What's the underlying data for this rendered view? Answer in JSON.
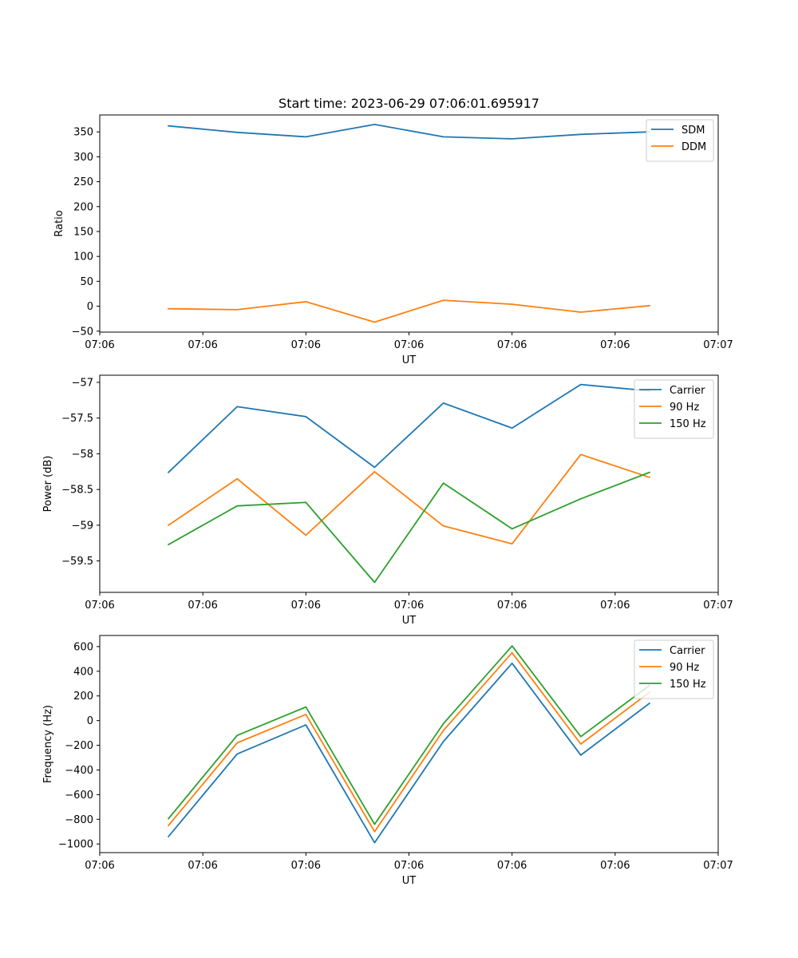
{
  "chart_data": [
    {
      "type": "line",
      "title": "Start time: 2023-06-29 07:06:01.695917",
      "xlabel": "UT",
      "ylabel": "Ratio",
      "x": [
        1,
        2,
        3,
        4,
        5,
        6,
        7,
        8
      ],
      "xlim": [
        0,
        9
      ],
      "x_tick_values": [
        0,
        1.5,
        3,
        4.5,
        6,
        7.5,
        9
      ],
      "x_tick_labels": [
        "07:06",
        "07:06",
        "07:06",
        "07:06",
        "07:06",
        "07:06",
        "07:07"
      ],
      "ylim": [
        -52,
        384
      ],
      "y_ticks": [
        -50,
        0,
        50,
        100,
        150,
        200,
        250,
        300,
        350
      ],
      "legend_position": "upper right",
      "series": [
        {
          "name": "SDM",
          "color": "#1f77b4",
          "values": [
            362,
            349,
            340,
            365,
            340,
            336,
            345,
            350
          ]
        },
        {
          "name": "DDM",
          "color": "#ff7f0e",
          "values": [
            -5,
            -7,
            9,
            -32,
            12,
            4,
            -12,
            1
          ]
        }
      ]
    },
    {
      "type": "line",
      "title": "",
      "xlabel": "UT",
      "ylabel": "Power (dB)",
      "x": [
        1,
        2,
        3,
        4,
        5,
        6,
        7,
        8
      ],
      "xlim": [
        0,
        9
      ],
      "x_tick_values": [
        0,
        1.5,
        3,
        4.5,
        6,
        7.5,
        9
      ],
      "x_tick_labels": [
        "07:06",
        "07:06",
        "07:06",
        "07:06",
        "07:06",
        "07:06",
        "07:07"
      ],
      "ylim": [
        -59.94,
        -56.9
      ],
      "y_ticks": [
        -59.5,
        -59.0,
        -58.5,
        -58.0,
        -57.5,
        -57.0
      ],
      "legend_position": "upper right",
      "series": [
        {
          "name": "Carrier",
          "color": "#1f77b4",
          "values": [
            -58.26,
            -57.34,
            -57.48,
            -58.19,
            -57.29,
            -57.64,
            -57.03,
            -57.12
          ]
        },
        {
          "name": "90 Hz",
          "color": "#ff7f0e",
          "values": [
            -59.0,
            -58.35,
            -59.14,
            -58.25,
            -59.01,
            -59.26,
            -58.01,
            -58.33
          ]
        },
        {
          "name": "150 Hz",
          "color": "#2ca02c",
          "values": [
            -59.27,
            -58.73,
            -58.68,
            -59.8,
            -58.41,
            -59.05,
            -58.63,
            -58.26
          ]
        }
      ]
    },
    {
      "type": "line",
      "title": "",
      "xlabel": "UT",
      "ylabel": "Frequency (Hz)",
      "x": [
        1,
        2,
        3,
        4,
        5,
        6,
        7,
        8
      ],
      "xlim": [
        0,
        9
      ],
      "x_tick_values": [
        0,
        1.5,
        3,
        4.5,
        6,
        7.5,
        9
      ],
      "x_tick_labels": [
        "07:06",
        "07:06",
        "07:06",
        "07:06",
        "07:06",
        "07:06",
        "07:07"
      ],
      "ylim": [
        -1070,
        690
      ],
      "y_ticks": [
        -1000,
        -800,
        -600,
        -400,
        -200,
        0,
        200,
        400,
        600
      ],
      "legend_position": "upper right",
      "series": [
        {
          "name": "Carrier",
          "color": "#1f77b4",
          "values": [
            -940,
            -270,
            -35,
            -990,
            -170,
            465,
            -280,
            140
          ]
        },
        {
          "name": "90 Hz",
          "color": "#ff7f0e",
          "values": [
            -850,
            -180,
            50,
            -900,
            -80,
            550,
            -190,
            230
          ]
        },
        {
          "name": "150 Hz",
          "color": "#2ca02c",
          "values": [
            -795,
            -120,
            110,
            -840,
            -25,
            605,
            -130,
            285
          ]
        }
      ]
    }
  ]
}
